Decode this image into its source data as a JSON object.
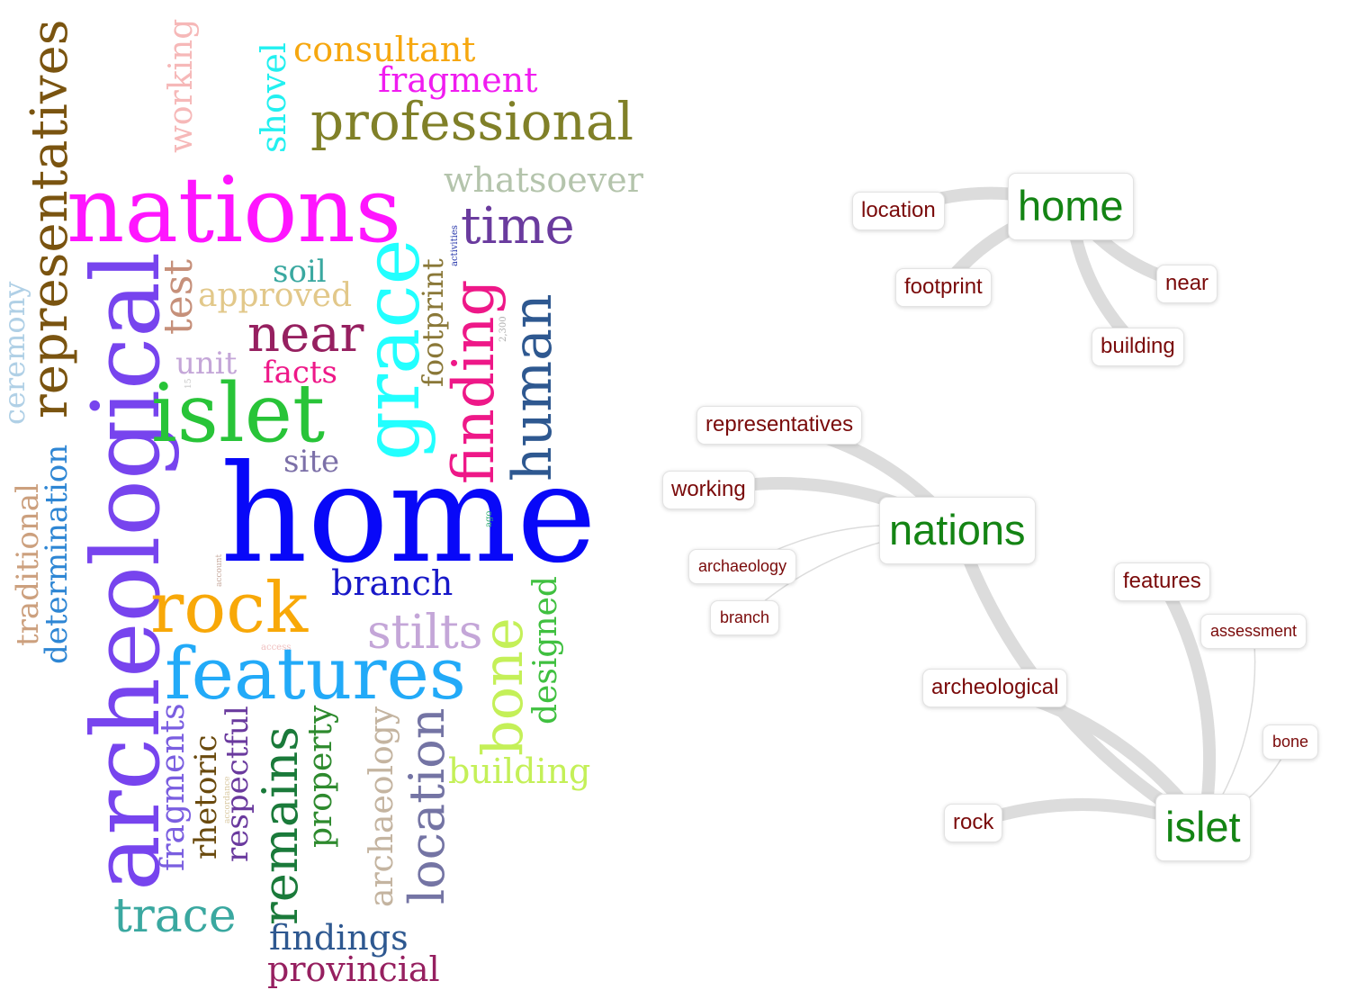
{
  "word_cloud": {
    "words": [
      {
        "t": "representatives",
        "c": "#7a5410"
      },
      {
        "t": "working",
        "c": "#f6b8b8"
      },
      {
        "t": "shovel",
        "c": "#22f0f0"
      },
      {
        "t": "consultant",
        "c": "#f6a70f"
      },
      {
        "t": "fragment",
        "c": "#f01cf0"
      },
      {
        "t": "professional",
        "c": "#808028"
      },
      {
        "t": "nations",
        "c": "#ff15ff"
      },
      {
        "t": "whatsoever",
        "c": "#b4c4ac"
      },
      {
        "t": "time",
        "c": "#6a3b9e"
      },
      {
        "t": "activities",
        "c": "#2030a8"
      },
      {
        "t": "archeological",
        "c": "#7744ee"
      },
      {
        "t": "test",
        "c": "#c6907a"
      },
      {
        "t": "soil",
        "c": "#3aa8a0"
      },
      {
        "t": "approved",
        "c": "#e2c88a"
      },
      {
        "t": "grace",
        "c": "#22ffff"
      },
      {
        "t": "footprint",
        "c": "#8a7838"
      },
      {
        "t": "finding",
        "c": "#ee1888"
      },
      {
        "t": "2,300",
        "c": "#b0b0b0"
      },
      {
        "t": "human",
        "c": "#2e5890"
      },
      {
        "t": "ceremony",
        "c": "#b0d0e6"
      },
      {
        "t": "near",
        "c": "#962060"
      },
      {
        "t": "unit",
        "c": "#c4a6d8"
      },
      {
        "t": "facts",
        "c": "#ee1888"
      },
      {
        "t": "islet",
        "c": "#28c438"
      },
      {
        "t": "15",
        "c": "#c4c4c4"
      },
      {
        "t": "site",
        "c": "#7c70a8"
      },
      {
        "t": "home",
        "c": "#0808f8"
      },
      {
        "t": "traditional",
        "c": "#cca07e"
      },
      {
        "t": "determination",
        "c": "#2e86d4"
      },
      {
        "t": "account",
        "c": "#c6a89c"
      },
      {
        "t": "ago",
        "c": "#2eaa70"
      },
      {
        "t": "branch",
        "c": "#1818c8"
      },
      {
        "t": "rock",
        "c": "#f8a808"
      },
      {
        "t": "stilts",
        "c": "#c4a6d8"
      },
      {
        "t": "access",
        "c": "#f0c0c0"
      },
      {
        "t": "features",
        "c": "#22aaf8"
      },
      {
        "t": "bone",
        "c": "#c4f058"
      },
      {
        "t": "designed",
        "c": "#40c040"
      },
      {
        "t": "fragments",
        "c": "#7a5ee0"
      },
      {
        "t": "rhetoric",
        "c": "#6a4a0e"
      },
      {
        "t": "accordance",
        "c": "#d8c8a0"
      },
      {
        "t": "respectful",
        "c": "#6a3a9e"
      },
      {
        "t": "remains",
        "c": "#1a7a3a"
      },
      {
        "t": "property",
        "c": "#2e8a2e"
      },
      {
        "t": "archaeology",
        "c": "#c4b4a0"
      },
      {
        "t": "location",
        "c": "#7474a4"
      },
      {
        "t": "building",
        "c": "#c4f058"
      },
      {
        "t": "trace",
        "c": "#3aa8a0"
      },
      {
        "t": "findings",
        "c": "#2e5890"
      },
      {
        "t": "provincial",
        "c": "#962060"
      }
    ]
  },
  "graph": {
    "colors": {
      "major": "#148414",
      "minor": "#7a0a0a",
      "edge": "#dcdcdc"
    },
    "nodes": [
      {
        "id": "home",
        "label": "home",
        "kind": "major"
      },
      {
        "id": "location",
        "label": "location",
        "kind": "minor"
      },
      {
        "id": "footprint",
        "label": "footprint",
        "kind": "minor"
      },
      {
        "id": "near",
        "label": "near",
        "kind": "minor"
      },
      {
        "id": "building",
        "label": "building",
        "kind": "minor"
      },
      {
        "id": "representatives",
        "label": "representatives",
        "kind": "minor"
      },
      {
        "id": "working",
        "label": "working",
        "kind": "minor"
      },
      {
        "id": "nations",
        "label": "nations",
        "kind": "major"
      },
      {
        "id": "archaeology",
        "label": "archaeology",
        "kind": "small"
      },
      {
        "id": "branch",
        "label": "branch",
        "kind": "small"
      },
      {
        "id": "features",
        "label": "features",
        "kind": "minor"
      },
      {
        "id": "assessment",
        "label": "assessment",
        "kind": "small"
      },
      {
        "id": "archeological",
        "label": "archeological",
        "kind": "minor"
      },
      {
        "id": "bone",
        "label": "bone",
        "kind": "small"
      },
      {
        "id": "rock",
        "label": "rock",
        "kind": "minor"
      },
      {
        "id": "islet",
        "label": "islet",
        "kind": "major"
      }
    ],
    "edges": [
      {
        "from": "home",
        "to": "location",
        "weight": "heavy"
      },
      {
        "from": "home",
        "to": "footprint",
        "weight": "heavy"
      },
      {
        "from": "home",
        "to": "near",
        "weight": "heavy"
      },
      {
        "from": "home",
        "to": "building",
        "weight": "heavy"
      },
      {
        "from": "nations",
        "to": "representatives",
        "weight": "heavy"
      },
      {
        "from": "nations",
        "to": "working",
        "weight": "heavy"
      },
      {
        "from": "nations",
        "to": "archaeology",
        "weight": "light"
      },
      {
        "from": "nations",
        "to": "branch",
        "weight": "light"
      },
      {
        "from": "nations",
        "to": "islet",
        "weight": "heavy"
      },
      {
        "from": "islet",
        "to": "features",
        "weight": "heavy"
      },
      {
        "from": "islet",
        "to": "assessment",
        "weight": "light"
      },
      {
        "from": "islet",
        "to": "bone",
        "weight": "light"
      },
      {
        "from": "islet",
        "to": "archeological",
        "weight": "heavy"
      },
      {
        "from": "islet",
        "to": "rock",
        "weight": "heavy"
      }
    ]
  }
}
